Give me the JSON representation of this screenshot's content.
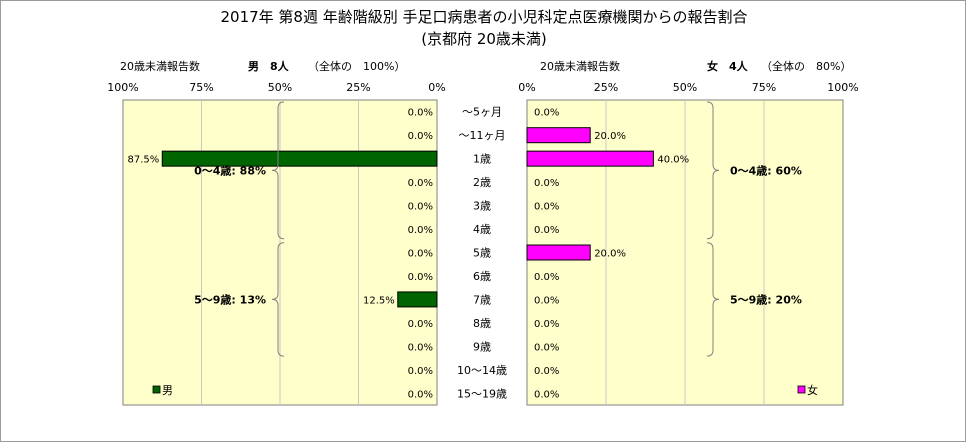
{
  "chart_data": {
    "type": "bar",
    "title": "2017年 第8週 年齢階級別 手足口病患者の小児科定点医療機関からの報告割合",
    "subtitle": "(京都府 20歳未満)",
    "categories": [
      "～5ヶ月",
      "～11ヶ月",
      "1歳",
      "2歳",
      "3歳",
      "4歳",
      "5歳",
      "6歳",
      "7歳",
      "8歳",
      "9歳",
      "10～14歳",
      "15～19歳"
    ],
    "series": [
      {
        "name": "男",
        "color": "#006400",
        "values": [
          0.0,
          0.0,
          87.5,
          0.0,
          0.0,
          0.0,
          0.0,
          0.0,
          12.5,
          0.0,
          0.0,
          0.0,
          0.0
        ]
      },
      {
        "name": "女",
        "color": "#ff00ff",
        "values": [
          0.0,
          20.0,
          40.0,
          0.0,
          0.0,
          0.0,
          20.0,
          0.0,
          0.0,
          0.0,
          0.0,
          0.0,
          0.0
        ]
      }
    ],
    "xlim": [
      0,
      100
    ],
    "tick_labels": [
      "0%",
      "25%",
      "50%",
      "75%",
      "100%"
    ],
    "value_labels": {
      "male": [
        "0.0%",
        "0.0%",
        "87.5%",
        "0.0%",
        "0.0%",
        "0.0%",
        "0.0%",
        "0.0%",
        "12.5%",
        "0.0%",
        "0.0%",
        "0.0%",
        "0.0%"
      ],
      "female": [
        "0.0%",
        "20.0%",
        "40.0%",
        "0.0%",
        "0.0%",
        "0.0%",
        "20.0%",
        "0.0%",
        "0.0%",
        "0.0%",
        "0.0%",
        "0.0%",
        "0.0%"
      ]
    },
    "male_header": {
      "caption": "20歳未満報告数",
      "count": "男　8人",
      "share": "（全体の　100%）"
    },
    "female_header": {
      "caption": "20歳未満報告数",
      "count": "女　4人",
      "share": "（全体の　80%）"
    },
    "brackets": {
      "male": [
        {
          "label": "0～4歳: 88%",
          "from": "～5ヶ月",
          "to": "4歳"
        },
        {
          "label": "5～9歳: 13%",
          "from": "5歳",
          "to": "9歳"
        }
      ],
      "female": [
        {
          "label": "0～4歳: 60%",
          "from": "～5ヶ月",
          "to": "4歳"
        },
        {
          "label": "5～9歳: 20%",
          "from": "5歳",
          "to": "9歳"
        }
      ]
    },
    "plot_background": "#ffffcc",
    "grid": true,
    "legend": {
      "male": "男",
      "female": "女",
      "placement": "bottom-inside"
    }
  }
}
